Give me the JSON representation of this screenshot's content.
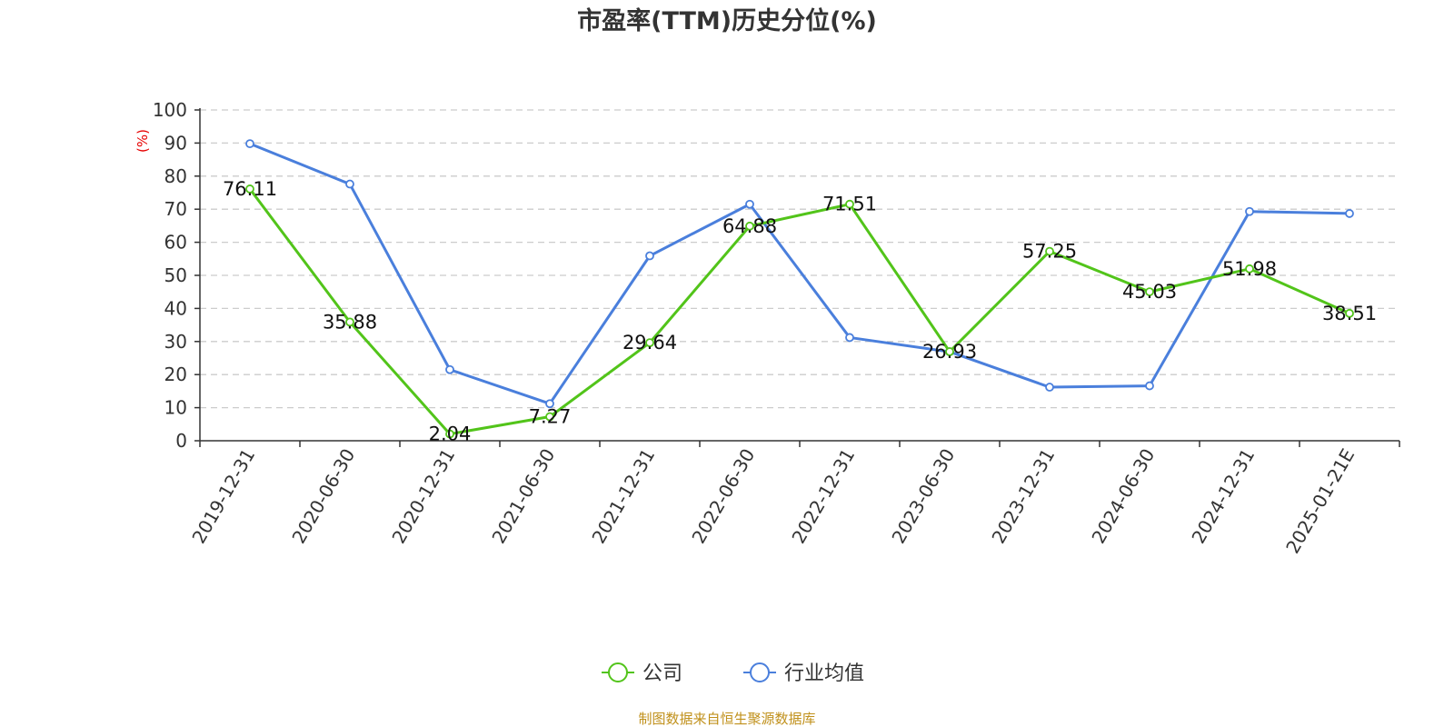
{
  "chart_data": {
    "type": "line",
    "title": "市盈率(TTM)历史分位(%)",
    "ylabel": "(%)",
    "ylim": [
      0,
      100
    ],
    "yticks": [
      0,
      10,
      20,
      30,
      40,
      50,
      60,
      70,
      80,
      90,
      100
    ],
    "grid": true,
    "legend_position": "bottom",
    "categories": [
      "2019-12-31",
      "2020-06-30",
      "2020-12-31",
      "2021-06-30",
      "2021-12-31",
      "2022-06-30",
      "2022-12-31",
      "2023-06-30",
      "2023-12-31",
      "2024-06-30",
      "2024-12-31",
      "2025-01-21E"
    ],
    "series": [
      {
        "name": "公司",
        "color": "#52c41a",
        "show_labels": true,
        "values": [
          76.11,
          35.88,
          2.04,
          7.27,
          29.64,
          64.88,
          71.51,
          26.93,
          57.25,
          45.03,
          51.98,
          38.51
        ]
      },
      {
        "name": "行业均值",
        "color": "#4a7fdc",
        "show_labels": false,
        "values": [
          89.8,
          77.6,
          21.5,
          11.2,
          55.9,
          71.5,
          31.2,
          26.9,
          16.2,
          16.6,
          69.3,
          68.7
        ]
      }
    ],
    "source": "制图数据来自恒生聚源数据库"
  }
}
